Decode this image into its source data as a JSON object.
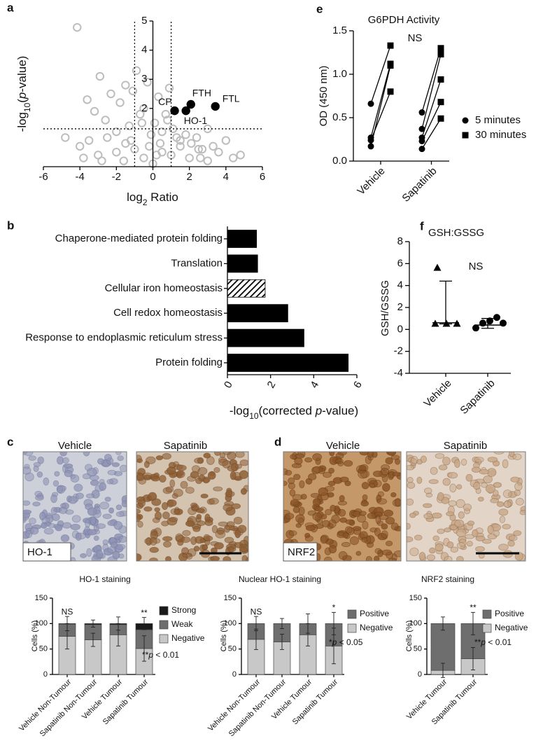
{
  "panel_labels": [
    "a",
    "b",
    "c",
    "d",
    "e",
    "f"
  ],
  "micrographs": {
    "c": {
      "left": "Vehicle",
      "right": "Sapatinib",
      "stain": "HO-1"
    },
    "d": {
      "left": "Vehicle",
      "right": "Sapatinib",
      "stain": "NRF2"
    }
  },
  "chart_data": [
    {
      "type": "scatter",
      "x_label": [
        "log",
        "2",
        " Ratio"
      ],
      "y_label": [
        "-log",
        "10",
        "(",
        "p",
        "-value)"
      ],
      "xlim": [
        -6,
        6
      ],
      "ylim": [
        0,
        5
      ],
      "xticks": [
        -6,
        -4,
        -2,
        0,
        2,
        4,
        6
      ],
      "yticks": [
        2,
        3,
        4,
        5
      ],
      "thresholds": {
        "x": [
          -1,
          1
        ],
        "y": 1.3
      },
      "series": [
        {
          "color": "#bdbdbd",
          "filled": false,
          "x": [
            -4.15,
            -3.6,
            -3.2,
            -2.9,
            -2.6,
            -2.3,
            -2.0,
            -1.8,
            -1.5,
            -1.3,
            -1.1,
            -0.9,
            -0.7,
            -0.5,
            -0.3,
            -0.1,
            0.1,
            0.3,
            0.5,
            0.7,
            0.9,
            1.1,
            1.3,
            1.5,
            1.8,
            2.1,
            2.4,
            2.7,
            3.0,
            3.3,
            3.6,
            4.0,
            4.4,
            4.8,
            -4.8,
            -4.0,
            -3.5,
            -3.0,
            -2.5,
            -2.0,
            -1.5,
            -1.0,
            -0.5,
            0,
            0.5,
            1.0,
            1.5,
            2.0,
            2.5,
            3.0,
            -3.8,
            -2.8,
            -1.2,
            -0.6,
            0.4,
            0.8,
            2.6,
            -0.2,
            0.2,
            -1.6
          ],
          "values": [
            4.78,
            2.3,
            1.9,
            3.1,
            1.6,
            2.5,
            1.2,
            2.2,
            2.8,
            1.4,
            2.6,
            3.3,
            1.8,
            2.0,
            2.9,
            1.1,
            1.5,
            2.4,
            1.2,
            1.8,
            2.7,
            1.3,
            1.0,
            0.9,
            1.1,
            0.8,
            1.0,
            0.6,
            1.3,
            0.7,
            0.5,
            0.9,
            0.3,
            0.4,
            1.0,
            0.7,
            0.9,
            0.4,
            1.0,
            0.5,
            0.8,
            0.6,
            0.3,
            0.1,
            0.5,
            0.4,
            0.7,
            0.3,
            0.6,
            0.2,
            0.3,
            0.2,
            0.9,
            1.5,
            0.8,
            1.6,
            0.3,
            0.7,
            0.4,
            0.2
          ]
        },
        {
          "color": "#000000",
          "filled": true,
          "x": [
            1.19,
            2.08,
            1.81,
            3.42
          ],
          "values": [
            1.92,
            2.14,
            1.92,
            2.07
          ],
          "labels": [
            "CP",
            "FTH",
            "HO-1",
            "FTL"
          ]
        }
      ]
    },
    {
      "type": "barh",
      "categories": [
        "Chaperone-mediated protein folding",
        "Translation",
        "Cellular iron homeostasis",
        "Cell redox homeostasis",
        "Response to endoplasmic reticulum stress",
        "Protein folding"
      ],
      "values": [
        1.35,
        1.4,
        1.75,
        2.8,
        3.55,
        5.6
      ],
      "color": "#000000",
      "hatched": [
        2
      ],
      "xlim": [
        0,
        6
      ],
      "xticks": [
        0,
        2,
        4,
        6
      ],
      "x_label": [
        "-log",
        "10",
        "(corrected ",
        "p",
        "-value)"
      ]
    },
    {
      "type": "paired",
      "title": "G6PDH Activity",
      "annotation": "NS",
      "y_label": "OD (450 nm)",
      "categories": [
        "Vehicle",
        "Sapatinib"
      ],
      "ylim": [
        0,
        1.5
      ],
      "yticks": [
        {
          "value": 0,
          "label": "0.0"
        },
        0.5,
        {
          "value": 1,
          "label": "1.0"
        },
        1.5
      ],
      "series": [
        {
          "name": "5 minutes",
          "marker": "circle",
          "color": "#000000",
          "values": [
            [
              0.66,
              0.27,
              0.24,
              0.17
            ],
            [
              0.56,
              0.37,
              0.27,
              0.23,
              0.14
            ]
          ]
        },
        {
          "name": "30 minutes",
          "marker": "square",
          "color": "#000000",
          "values": [
            [
              1.33,
              1.12,
              0.8,
              1.1
            ],
            [
              1.3,
              1.23,
              0.94,
              0.68,
              0.49
            ]
          ]
        }
      ]
    },
    {
      "type": "dot",
      "title": "GSH:GSSG",
      "annotation": "NS",
      "y_label": "GSH/GSSG",
      "categories": [
        "Vehicle",
        "Sapatinib"
      ],
      "markers": [
        "triangle",
        "circle"
      ],
      "color": "#000000",
      "ylim": [
        -4,
        8
      ],
      "yticks": [
        -4,
        -2,
        0,
        2,
        4,
        6,
        8
      ],
      "values": [
        [
          5.6,
          0.5,
          0.5,
          0.5
        ],
        [
          0.13,
          0.57,
          0.77,
          1.09,
          0.57
        ]
      ],
      "center": [
        0.6,
        0.4
      ],
      "whisker_low": [
        0.5,
        0.1
      ],
      "whisker_high": [
        4.4,
        1.0
      ]
    },
    {
      "type": "stacked",
      "title": "HO-1 staining",
      "y_label": "Cells (%)",
      "categories": [
        "Vehicle Non-Tumour",
        "Sapatinib Non-Tumour",
        "Vehicle Tumour",
        "Sapatinib Tumour"
      ],
      "ylim": [
        0,
        150
      ],
      "yticks": [
        0,
        50,
        100,
        150
      ],
      "annotations": [
        "NS",
        null,
        null,
        "**"
      ],
      "note": [
        "**",
        "p",
        " < 0.01"
      ],
      "series": [
        {
          "name": "Negative",
          "color": "#c8c8c8",
          "values": [
            75,
            68,
            78,
            51
          ],
          "errors": [
            25,
            13,
            22,
            25
          ]
        },
        {
          "name": "Weak",
          "color": "#6e6e6e",
          "values": [
            24,
            30,
            20,
            37
          ]
        },
        {
          "name": "Strong",
          "color": "#1a1a1a",
          "values": [
            1,
            2,
            2,
            12
          ],
          "errors": [
            14,
            7,
            13,
            12
          ]
        }
      ]
    },
    {
      "type": "stacked",
      "title": "Nuclear HO-1 staining",
      "y_label": "Cells (%)",
      "categories": [
        "Vehicle Non-Tumour",
        "Sapatinib Non-Tumour",
        "Vehicle Tumour",
        "Sapatinib Tumour"
      ],
      "ylim": [
        0,
        150
      ],
      "yticks": [
        0,
        50,
        100,
        150
      ],
      "annotations": [
        "NS",
        null,
        null,
        "*"
      ],
      "note": [
        "*",
        "p",
        " < 0.05"
      ],
      "series": [
        {
          "name": "Negative",
          "color": "#c8c8c8",
          "values": [
            69,
            64,
            78,
            56
          ],
          "errors": [
            20,
            15,
            22,
            35
          ]
        },
        {
          "name": "Positive",
          "color": "#6e6e6e",
          "values": [
            31,
            36,
            22,
            44
          ],
          "errors": [
            14,
            10,
            19,
            22
          ]
        }
      ]
    },
    {
      "type": "stacked",
      "title": "NRF2 staining",
      "y_label": "Cells (%)",
      "categories": [
        "Vehicle Tumour",
        "Sapatinib Tumour"
      ],
      "ylim": [
        0,
        150
      ],
      "yticks": [
        0,
        50,
        100,
        150
      ],
      "annotations": [
        null,
        "**"
      ],
      "note": [
        "**",
        "p",
        " < 0.01"
      ],
      "series": [
        {
          "name": "Negative",
          "color": "#c8c8c8",
          "values": [
            8,
            31
          ],
          "errors": [
            14,
            22
          ]
        },
        {
          "name": "Positive",
          "color": "#6e6e6e",
          "values": [
            92,
            69
          ],
          "errors": [
            13,
            22
          ]
        }
      ]
    }
  ]
}
